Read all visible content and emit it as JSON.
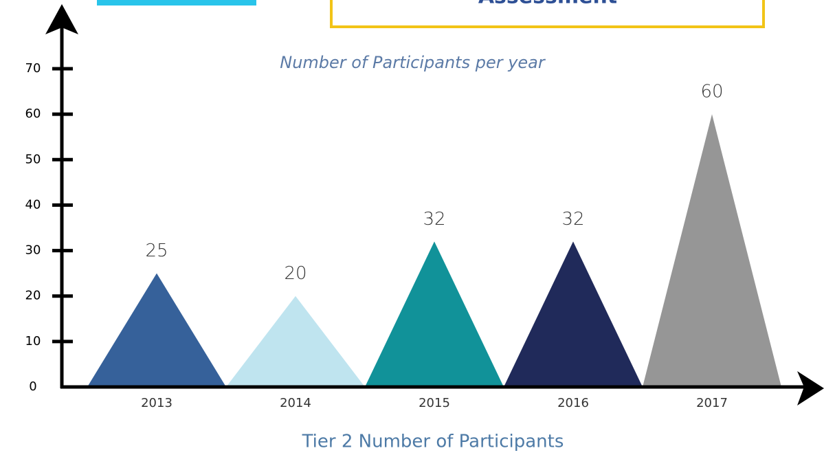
{
  "header": {
    "title": "Assessment"
  },
  "chart_data": {
    "type": "triangle",
    "title": "Number of Participants per year",
    "xlabel": "Tier 2 Number of Participants",
    "categories": [
      "2013",
      "2014",
      "2015",
      "2016",
      "2017"
    ],
    "values": [
      25,
      20,
      32,
      32,
      60
    ],
    "colors": [
      "#36619a",
      "#bfe4ef",
      "#119299",
      "#202a5a",
      "#969696"
    ],
    "ylim": [
      0,
      70
    ],
    "yticks": [
      0,
      10,
      20,
      30,
      40,
      50,
      60,
      70
    ]
  }
}
